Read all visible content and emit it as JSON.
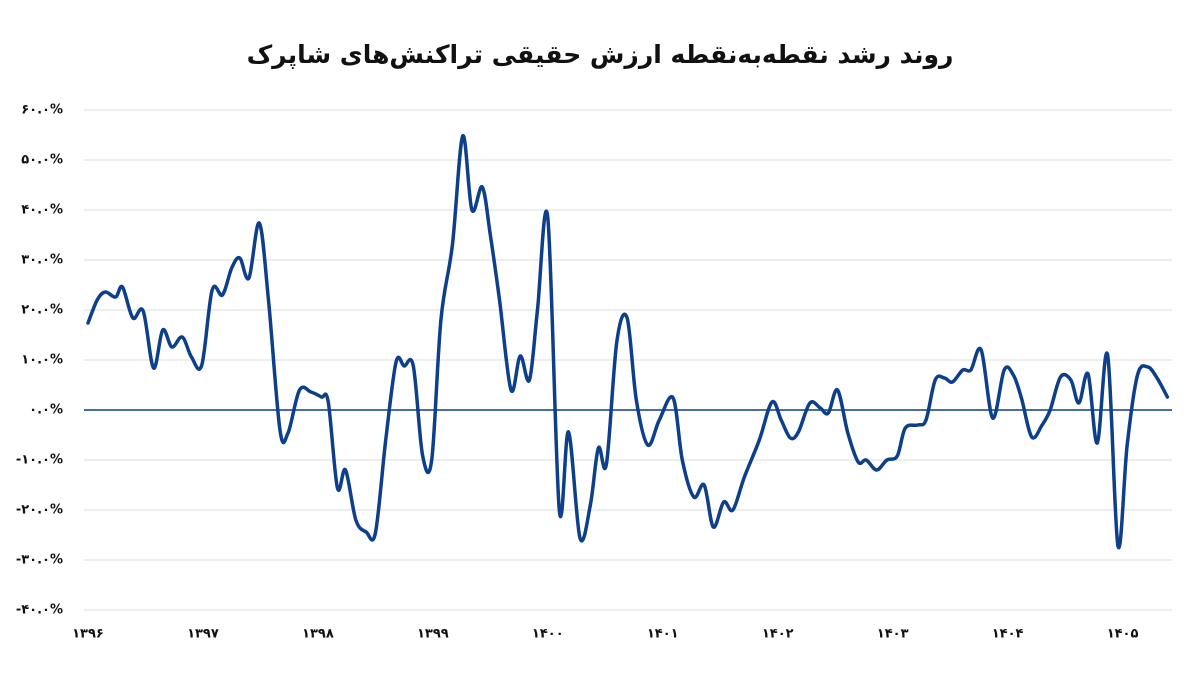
{
  "chart_data": {
    "type": "line",
    "title": "روند رشد نقطه‌به‌نقطه ارزش حقیقی تراکنش‌های شاپرک",
    "color": "#0d3f8a",
    "zero_line_color": "#0d3f8a",
    "grid": true,
    "smooth": true,
    "x": [
      1396,
      1396.08,
      1396.15,
      1396.24,
      1396.3,
      1396.39,
      1396.48,
      1396.57,
      1396.65,
      1396.73,
      1396.82,
      1396.9,
      1396.99,
      1397.08,
      1397.17,
      1397.25,
      1397.32,
      1397.4,
      1397.49,
      1397.57,
      1397.67,
      1397.74,
      1397.84,
      1397.94,
      1398.03,
      1398.09,
      1398.17,
      1398.24,
      1398.33,
      1398.42,
      1398.5,
      1398.59,
      1398.68,
      1398.75,
      1398.83,
      1398.91,
      1398.99,
      1399.07,
      1399.17,
      1399.26,
      1399.34,
      1399.43,
      1399.5,
      1399.58,
      1399.68,
      1399.76,
      1399.84,
      1399.91,
      1400.0,
      1400.1,
      1400.18,
      1400.28,
      1400.37,
      1400.44,
      1400.51,
      1400.6,
      1400.69,
      1400.77,
      1400.87,
      1400.97,
      1401.09,
      1401.17,
      1401.27,
      1401.36,
      1401.44,
      1401.53,
      1401.61,
      1401.71,
      1401.84,
      1401.95,
      1402.03,
      1402.11,
      1402.18,
      1402.28,
      1402.37,
      1402.44,
      1402.52,
      1402.61,
      1402.7,
      1402.77,
      1402.86,
      1402.95,
      1403.04,
      1403.11,
      1403.22,
      1403.29,
      1403.37,
      1403.45,
      1403.52,
      1403.61,
      1403.68,
      1403.77,
      1403.87,
      1403.97,
      1404.05,
      1404.12,
      1404.21,
      1404.3,
      1404.37,
      1404.46,
      1404.55,
      1404.62,
      1404.7,
      1404.78,
      1404.87,
      1404.96,
      1405.04,
      1405.13,
      1405.22,
      1405.3,
      1405.39
    ],
    "values": [
      17.4,
      22,
      23.6,
      22.6,
      24.6,
      18.4,
      19.8,
      8.4,
      16,
      12.6,
      14.6,
      10.6,
      9,
      24,
      23,
      28.4,
      30.4,
      26.4,
      37.4,
      22,
      -4,
      -4.6,
      4,
      3.6,
      2.6,
      1.6,
      -15.6,
      -12,
      -22,
      -24.4,
      -24.6,
      -6,
      9.6,
      8.8,
      8.8,
      -9,
      -10,
      18,
      33,
      54.8,
      40,
      44.6,
      35,
      22,
      4,
      10.8,
      6,
      20,
      38.4,
      -20,
      -4.4,
      -25.6,
      -19,
      -7.6,
      -10.8,
      13.6,
      18.4,
      2,
      -7,
      -2,
      2.4,
      -10,
      -17.4,
      -15,
      -23.4,
      -18.4,
      -20,
      -13.4,
      -6,
      1.6,
      -2,
      -5.6,
      -4.4,
      1.4,
      0.4,
      -0.6,
      4,
      -4.6,
      -10.4,
      -10,
      -12,
      -10,
      -9.2,
      -3.6,
      -3,
      -2,
      6,
      6.4,
      5.6,
      8,
      8,
      12,
      -1.6,
      8,
      7,
      2.4,
      -5.4,
      -3,
      0,
      6.6,
      6,
      1.4,
      7.2,
      -6.6,
      11,
      -27.2,
      -7,
      7,
      8.6,
      6.4,
      2.6
    ],
    "xlim": [
      1396,
      1405.43
    ],
    "xticks": [
      {
        "value": 1396,
        "label": "۱۳۹۶"
      },
      {
        "value": 1397,
        "label": "۱۳۹۷"
      },
      {
        "value": 1398,
        "label": "۱۳۹۸"
      },
      {
        "value": 1399,
        "label": "۱۳۹۹"
      },
      {
        "value": 1400,
        "label": "۱۴۰۰"
      },
      {
        "value": 1401,
        "label": "۱۴۰۱"
      },
      {
        "value": 1402,
        "label": "۱۴۰۲"
      },
      {
        "value": 1403,
        "label": "۱۴۰۳"
      },
      {
        "value": 1404,
        "label": "۱۴۰۴"
      },
      {
        "value": 1405,
        "label": "۱۴۰۵"
      }
    ],
    "ylim": [
      -40,
      60
    ],
    "yticks": [
      {
        "value": 60,
        "label": "۶۰.۰%"
      },
      {
        "value": 50,
        "label": "۵۰.۰%"
      },
      {
        "value": 40,
        "label": "۴۰.۰%"
      },
      {
        "value": 30,
        "label": "۳۰.۰%"
      },
      {
        "value": 20,
        "label": "۲۰.۰%"
      },
      {
        "value": 10,
        "label": "۱۰.۰%"
      },
      {
        "value": 0,
        "label": "۰.۰%"
      },
      {
        "value": -10,
        "label": "-۱۰.۰%"
      },
      {
        "value": -20,
        "label": "-۲۰.۰%"
      },
      {
        "value": -30,
        "label": "-۳۰.۰%"
      },
      {
        "value": -40,
        "label": "-۴۰.۰%"
      }
    ]
  }
}
